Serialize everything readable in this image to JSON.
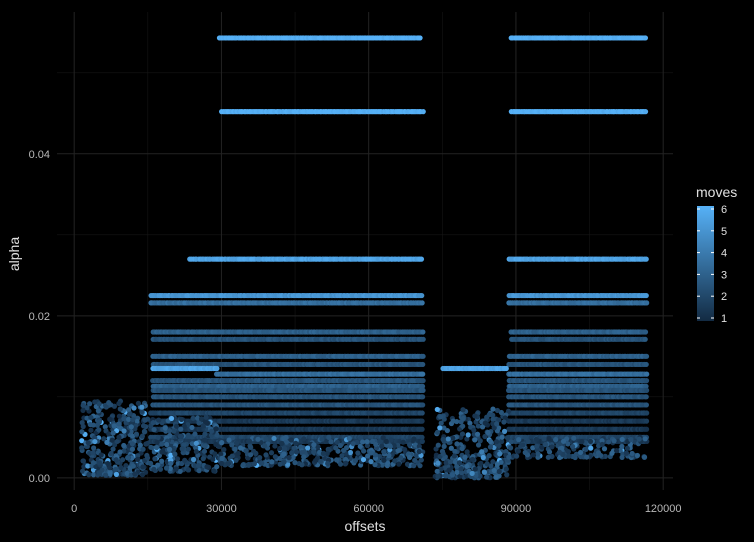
{
  "chart_data": {
    "type": "scatter",
    "title": "",
    "xlabel": "offsets",
    "ylabel": "alpha",
    "xlim": [
      -3500,
      122000
    ],
    "ylim": [
      -0.0015,
      0.0575
    ],
    "x_ticks": [
      0,
      30000,
      60000,
      90000,
      120000
    ],
    "x_tick_labels": [
      "0",
      "30000",
      "60000",
      "90000",
      "120000"
    ],
    "y_ticks": [
      0.0,
      0.02,
      0.04
    ],
    "y_tick_labels": [
      "0.00",
      "0.02",
      "0.04"
    ],
    "grid": true,
    "color_by": "moves",
    "legend": {
      "title": "moves",
      "placement": "right",
      "range": [
        1,
        6
      ],
      "ticks": [
        1,
        2,
        3,
        4,
        5,
        6
      ],
      "tick_labels": [
        "1",
        "2",
        "3",
        "4",
        "5",
        "6"
      ],
      "color_low": "#132B43",
      "color_high": "#56B1F7"
    },
    "bands": [
      {
        "y": 0.0543,
        "moves": 6,
        "segments": [
          [
            29500,
            70500
          ],
          [
            89000,
            116500
          ]
        ]
      },
      {
        "y": 0.0452,
        "moves": 6,
        "segments": [
          [
            30000,
            71000
          ],
          [
            89000,
            116500
          ]
        ]
      },
      {
        "y": 0.027,
        "moves": 5.5,
        "segments": [
          [
            23500,
            71000
          ],
          [
            88500,
            116500
          ]
        ]
      },
      {
        "y": 0.0225,
        "moves": 5,
        "segments": [
          [
            15500,
            71000
          ],
          [
            88500,
            116500
          ]
        ]
      },
      {
        "y": 0.0216,
        "moves": 3.5,
        "segments": [
          [
            15500,
            71000
          ],
          [
            88500,
            116500
          ]
        ]
      },
      {
        "y": 0.018,
        "moves": 3,
        "segments": [
          [
            16000,
            71000
          ],
          [
            89000,
            116500
          ]
        ]
      },
      {
        "y": 0.0171,
        "moves": 2.5,
        "segments": [
          [
            16000,
            71000
          ],
          [
            89000,
            116500
          ]
        ]
      },
      {
        "y": 0.015,
        "moves": 3,
        "segments": [
          [
            16000,
            71000
          ],
          [
            88500,
            116500
          ]
        ]
      },
      {
        "y": 0.014,
        "moves": 2.5,
        "segments": [
          [
            16000,
            71000
          ],
          [
            88500,
            116500
          ]
        ]
      },
      {
        "y": 0.0135,
        "moves": 5.5,
        "segments": [
          [
            16000,
            29000
          ],
          [
            75000,
            88000
          ]
        ]
      },
      {
        "y": 0.0128,
        "moves": 3.5,
        "segments": [
          [
            29000,
            71000
          ],
          [
            88500,
            116500
          ]
        ]
      },
      {
        "y": 0.012,
        "moves": 2.5,
        "segments": [
          [
            16000,
            71000
          ],
          [
            88500,
            116500
          ]
        ]
      },
      {
        "y": 0.0113,
        "moves": 3,
        "segments": [
          [
            16000,
            71000
          ],
          [
            88500,
            116500
          ]
        ]
      },
      {
        "y": 0.0108,
        "moves": 2.5,
        "segments": [
          [
            16000,
            71000
          ],
          [
            88500,
            116500
          ]
        ]
      },
      {
        "y": 0.01,
        "moves": 2.5,
        "segments": [
          [
            16000,
            71000
          ],
          [
            88500,
            116500
          ]
        ]
      },
      {
        "y": 0.009,
        "moves": 2.5,
        "segments": [
          [
            16000,
            71000
          ],
          [
            88500,
            116500
          ]
        ]
      },
      {
        "y": 0.008,
        "moves": 2,
        "segments": [
          [
            15500,
            71000
          ],
          [
            88500,
            116500
          ]
        ]
      },
      {
        "y": 0.007,
        "moves": 1.5,
        "segments": [
          [
            15500,
            71000
          ],
          [
            88500,
            116500
          ]
        ]
      },
      {
        "y": 0.006,
        "moves": 1.5,
        "segments": [
          [
            15500,
            71000
          ],
          [
            88500,
            116500
          ]
        ]
      },
      {
        "y": 0.005,
        "moves": 2,
        "segments": [
          [
            15500,
            71000
          ],
          [
            88500,
            116500
          ]
        ]
      },
      {
        "y": 0.0045,
        "moves": 1.5,
        "segments": [
          [
            15500,
            71000
          ],
          [
            88500,
            116500
          ]
        ]
      }
    ]
  }
}
